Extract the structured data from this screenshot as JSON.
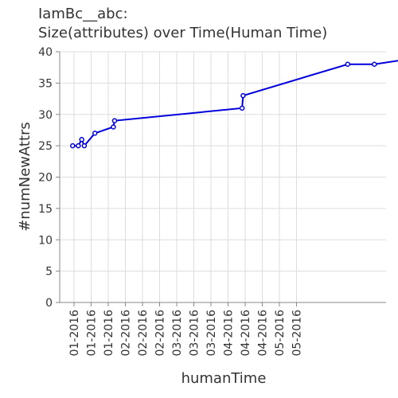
{
  "chart_data": {
    "type": "line",
    "title_lines": [
      "IamBc__abc:",
      "Size(attributes) over Time(Human Time)"
    ],
    "xlabel": "humanTime",
    "ylabel": "#numNewAttrs",
    "ylim": [
      0,
      40
    ],
    "y_ticks": [
      0,
      5,
      10,
      15,
      20,
      25,
      30,
      35,
      40
    ],
    "x_tick_labels": [
      "01-2016",
      "01-2016",
      "01-2016",
      "02-2016",
      "02-2016",
      "02-2016",
      "03-2016",
      "03-2016",
      "03-2016",
      "04-2016",
      "04-2016",
      "04-2016",
      "05-2016",
      "05-2016"
    ],
    "grid": true,
    "line_color": "#0000dd",
    "series": [
      {
        "x": [
          -0.08,
          0.25,
          0.45,
          0.6,
          1.22,
          2.3,
          2.37,
          9.82,
          9.88,
          15.99,
          17.55,
          19.97
        ],
        "values": [
          25,
          25,
          26,
          25,
          27,
          28,
          29,
          31,
          33,
          38,
          38,
          39
        ]
      }
    ]
  }
}
